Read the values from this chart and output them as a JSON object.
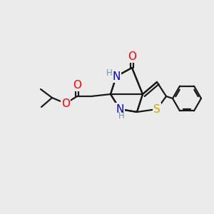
{
  "bg_color": "#ebebeb",
  "bond_color": "#1a1a1a",
  "bond_width": 1.6,
  "atom_colors": {
    "O": "#ff0000",
    "N": "#0000dd",
    "S": "#ccaa00",
    "H": "#6699aa"
  },
  "font_size_atom": 11,
  "font_size_H": 8.5,
  "figsize": [
    3.0,
    3.0
  ],
  "dpi": 100
}
